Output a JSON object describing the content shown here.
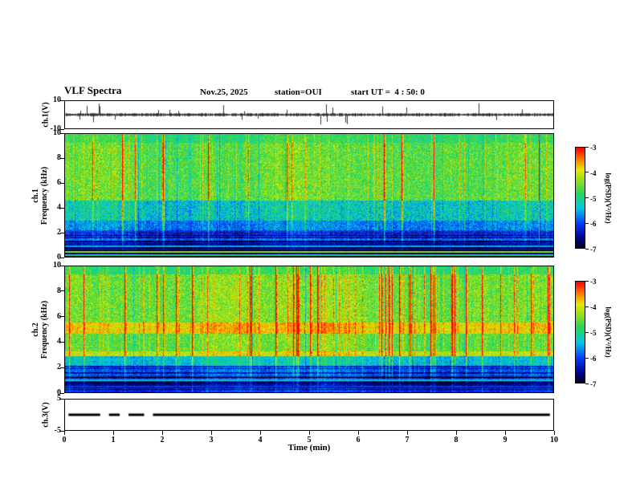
{
  "header": {
    "title": "VLF Spectra",
    "date": "Nov.25, 2025",
    "station": "station=OUI",
    "start_ut": "start UT =  4 : 50: 0"
  },
  "axes": {
    "time": {
      "label": "Time (min)",
      "min": 0,
      "max": 10,
      "ticks": [
        0,
        1,
        2,
        3,
        4,
        5,
        6,
        7,
        8,
        9,
        10
      ]
    },
    "ch1_voltage": {
      "label": "ch.1(V)",
      "min": -10,
      "max": 10,
      "ticks": [
        10,
        -10
      ]
    },
    "ch1_freq": {
      "label_line1": "ch.1",
      "label_line2": "Frequency (kHz)",
      "min": 0,
      "max": 10,
      "ticks": [
        10,
        8,
        6,
        4,
        2,
        0
      ]
    },
    "ch2_freq": {
      "label_line1": "ch.2",
      "label_line2": "Frequency (kHz)",
      "min": 0,
      "max": 10,
      "ticks": [
        10,
        8,
        6,
        4,
        2,
        0
      ]
    },
    "ch3_voltage": {
      "label": "ch.3(V)",
      "min": -5,
      "max": 5,
      "ticks": [
        5,
        -5
      ]
    }
  },
  "colorbars": [
    {
      "label": "log(PSD)(V²/Hz)",
      "min": -7,
      "max": -3,
      "ticks": [
        -3,
        -4,
        -5,
        -6,
        -7
      ]
    },
    {
      "label": "log(PSD)(V²/Hz)",
      "min": -7,
      "max": -3,
      "ticks": [
        -3,
        -4,
        -5,
        -6,
        -7
      ]
    }
  ],
  "colormap": [
    {
      "u": 0.0,
      "color": "#000014"
    },
    {
      "u": 0.1,
      "color": "#000090"
    },
    {
      "u": 0.25,
      "color": "#0040ff"
    },
    {
      "u": 0.4,
      "color": "#00c8e8"
    },
    {
      "u": 0.55,
      "color": "#28d850"
    },
    {
      "u": 0.68,
      "color": "#96e020"
    },
    {
      "u": 0.78,
      "color": "#e8e800"
    },
    {
      "u": 0.88,
      "color": "#ff8000"
    },
    {
      "u": 1.0,
      "color": "#ff0000"
    }
  ],
  "chart_data": [
    {
      "type": "line",
      "name": "ch1_voltage_waveform",
      "ylabel": "ch.1(V)",
      "x_range": [
        0,
        10
      ],
      "y_range": [
        -10,
        10
      ],
      "description": "Dense broadband noise trace centred on 0 V (about ±1 V) with frequent impulsive spikes reaching roughly ±9 V throughout the 10-minute record",
      "noise_envelope": 0.9,
      "spike_probability": 0.045,
      "spike_amplitude": [
        2.5,
        8.5
      ],
      "seed": 7
    },
    {
      "type": "heatmap",
      "name": "ch1_spectrogram",
      "ylabel": "ch.1 Frequency (kHz)",
      "zlabel": "log(PSD)(V²/Hz)",
      "x_range": [
        0,
        10
      ],
      "y_range": [
        0,
        10
      ],
      "z_range": [
        -7,
        -3
      ],
      "seed": 11,
      "bands": [
        {
          "f": [
            9.3,
            10.0
          ],
          "base": -4.7,
          "noise": 0.3,
          "streak_gain": 0.8
        },
        {
          "f": [
            4.6,
            9.3
          ],
          "base": -4.45,
          "noise": 0.4,
          "streak_gain": 1.0
        },
        {
          "f": [
            3.0,
            4.6
          ],
          "base": -5.15,
          "noise": 0.4,
          "streak_gain": 0.75
        },
        {
          "f": [
            2.2,
            3.0
          ],
          "base": -5.6,
          "noise": 0.35,
          "streak_gain": 0.55
        },
        {
          "f": [
            1.25,
            2.2
          ],
          "base": -6.1,
          "noise": 0.3,
          "streak_gain": 0.4,
          "stripes": 0.35
        },
        {
          "f": [
            0.55,
            1.25
          ],
          "base": -6.6,
          "noise": 0.2,
          "streak_gain": 0.25,
          "stripes": 0.4
        },
        {
          "f": [
            0.0,
            0.55
          ],
          "base": -6.85,
          "noise": 0.15,
          "streak_gain": 0.15,
          "stripes": 0.3
        }
      ],
      "h_lines": [
        {
          "f": 0.42,
          "value": -4.3
        },
        {
          "f": 0.18,
          "value": -5.0
        },
        {
          "f": 0.9,
          "value": -5.5
        }
      ],
      "streaks": {
        "moderate_prob": 0.07,
        "moderate_boost": [
          0.3,
          0.8
        ],
        "strong_prob": 0.03,
        "strong_boost": [
          1.2,
          2.4
        ],
        "dark_prob": 0.02,
        "dark_drop": [
          0.4,
          0.9
        ]
      },
      "description": "VLF spectrogram: yellow-green band above ~4.6 kHz crossed by many vertical sferic streaks (orange/red), cyan-green 3-4.6 kHz, blue 1.3-2.2 kHz, near-black below 1.3 kHz with thin horizontal interference lines"
    },
    {
      "type": "heatmap",
      "name": "ch2_spectrogram",
      "ylabel": "ch.2 Frequency (kHz)",
      "zlabel": "log(PSD)(V²/Hz)",
      "x_range": [
        0,
        10
      ],
      "y_range": [
        0,
        10
      ],
      "z_range": [
        -7,
        -3
      ],
      "seed": 23,
      "bands": [
        {
          "f": [
            9.4,
            10.0
          ],
          "base": -4.8,
          "noise": 0.3,
          "streak_gain": 0.8
        },
        {
          "f": [
            5.6,
            9.4
          ],
          "base": -4.4,
          "noise": 0.4,
          "streak_gain": 1.0
        },
        {
          "f": [
            4.7,
            5.6
          ],
          "base": -3.75,
          "noise": 0.3,
          "streak_gain": 0.7
        },
        {
          "f": [
            3.3,
            4.7
          ],
          "base": -4.5,
          "noise": 0.35,
          "streak_gain": 0.9
        },
        {
          "f": [
            2.9,
            3.3
          ],
          "base": -4.0,
          "noise": 0.3,
          "streak_gain": 0.6
        },
        {
          "f": [
            2.2,
            2.9
          ],
          "base": -5.3,
          "noise": 0.3,
          "streak_gain": 0.5
        },
        {
          "f": [
            1.3,
            2.2
          ],
          "base": -5.9,
          "noise": 0.3,
          "streak_gain": 0.35,
          "stripes": 0.4
        },
        {
          "f": [
            0.0,
            1.3
          ],
          "base": -6.5,
          "noise": 0.25,
          "streak_gain": 0.2,
          "stripes": 0.45
        }
      ],
      "h_lines": [
        {
          "f": 1.0,
          "value": -5.3
        },
        {
          "f": 0.45,
          "value": -6.1
        }
      ],
      "streaks": {
        "moderate_prob": 0.08,
        "moderate_boost": [
          0.3,
          0.9
        ],
        "strong_prob": 0.04,
        "strong_boost": [
          1.2,
          2.6
        ],
        "dark_prob": 0.015,
        "dark_drop": [
          0.4,
          0.8
        ]
      },
      "description": "VLF spectrogram: bright yellow-orange band near 5 kHz and thin yellow band near 3 kHz, green 3.3-9.4 kHz with dense red sferic streaks, cyan 2.2-2.9 kHz, dark blue striped background below 2.2 kHz"
    },
    {
      "type": "line",
      "name": "ch3_voltage",
      "ylabel": "ch.3(V)",
      "x_range": [
        0,
        10
      ],
      "y_range": [
        -5,
        5
      ],
      "value": 0,
      "segments": [
        [
          0.07,
          0.72
        ],
        [
          0.9,
          1.12
        ],
        [
          1.3,
          1.62
        ],
        [
          1.8,
          9.93
        ]
      ],
      "description": "Flat trace at ~0 V drawn as a thick black line with short gaps between ~0.7 and ~1.8 min"
    }
  ]
}
